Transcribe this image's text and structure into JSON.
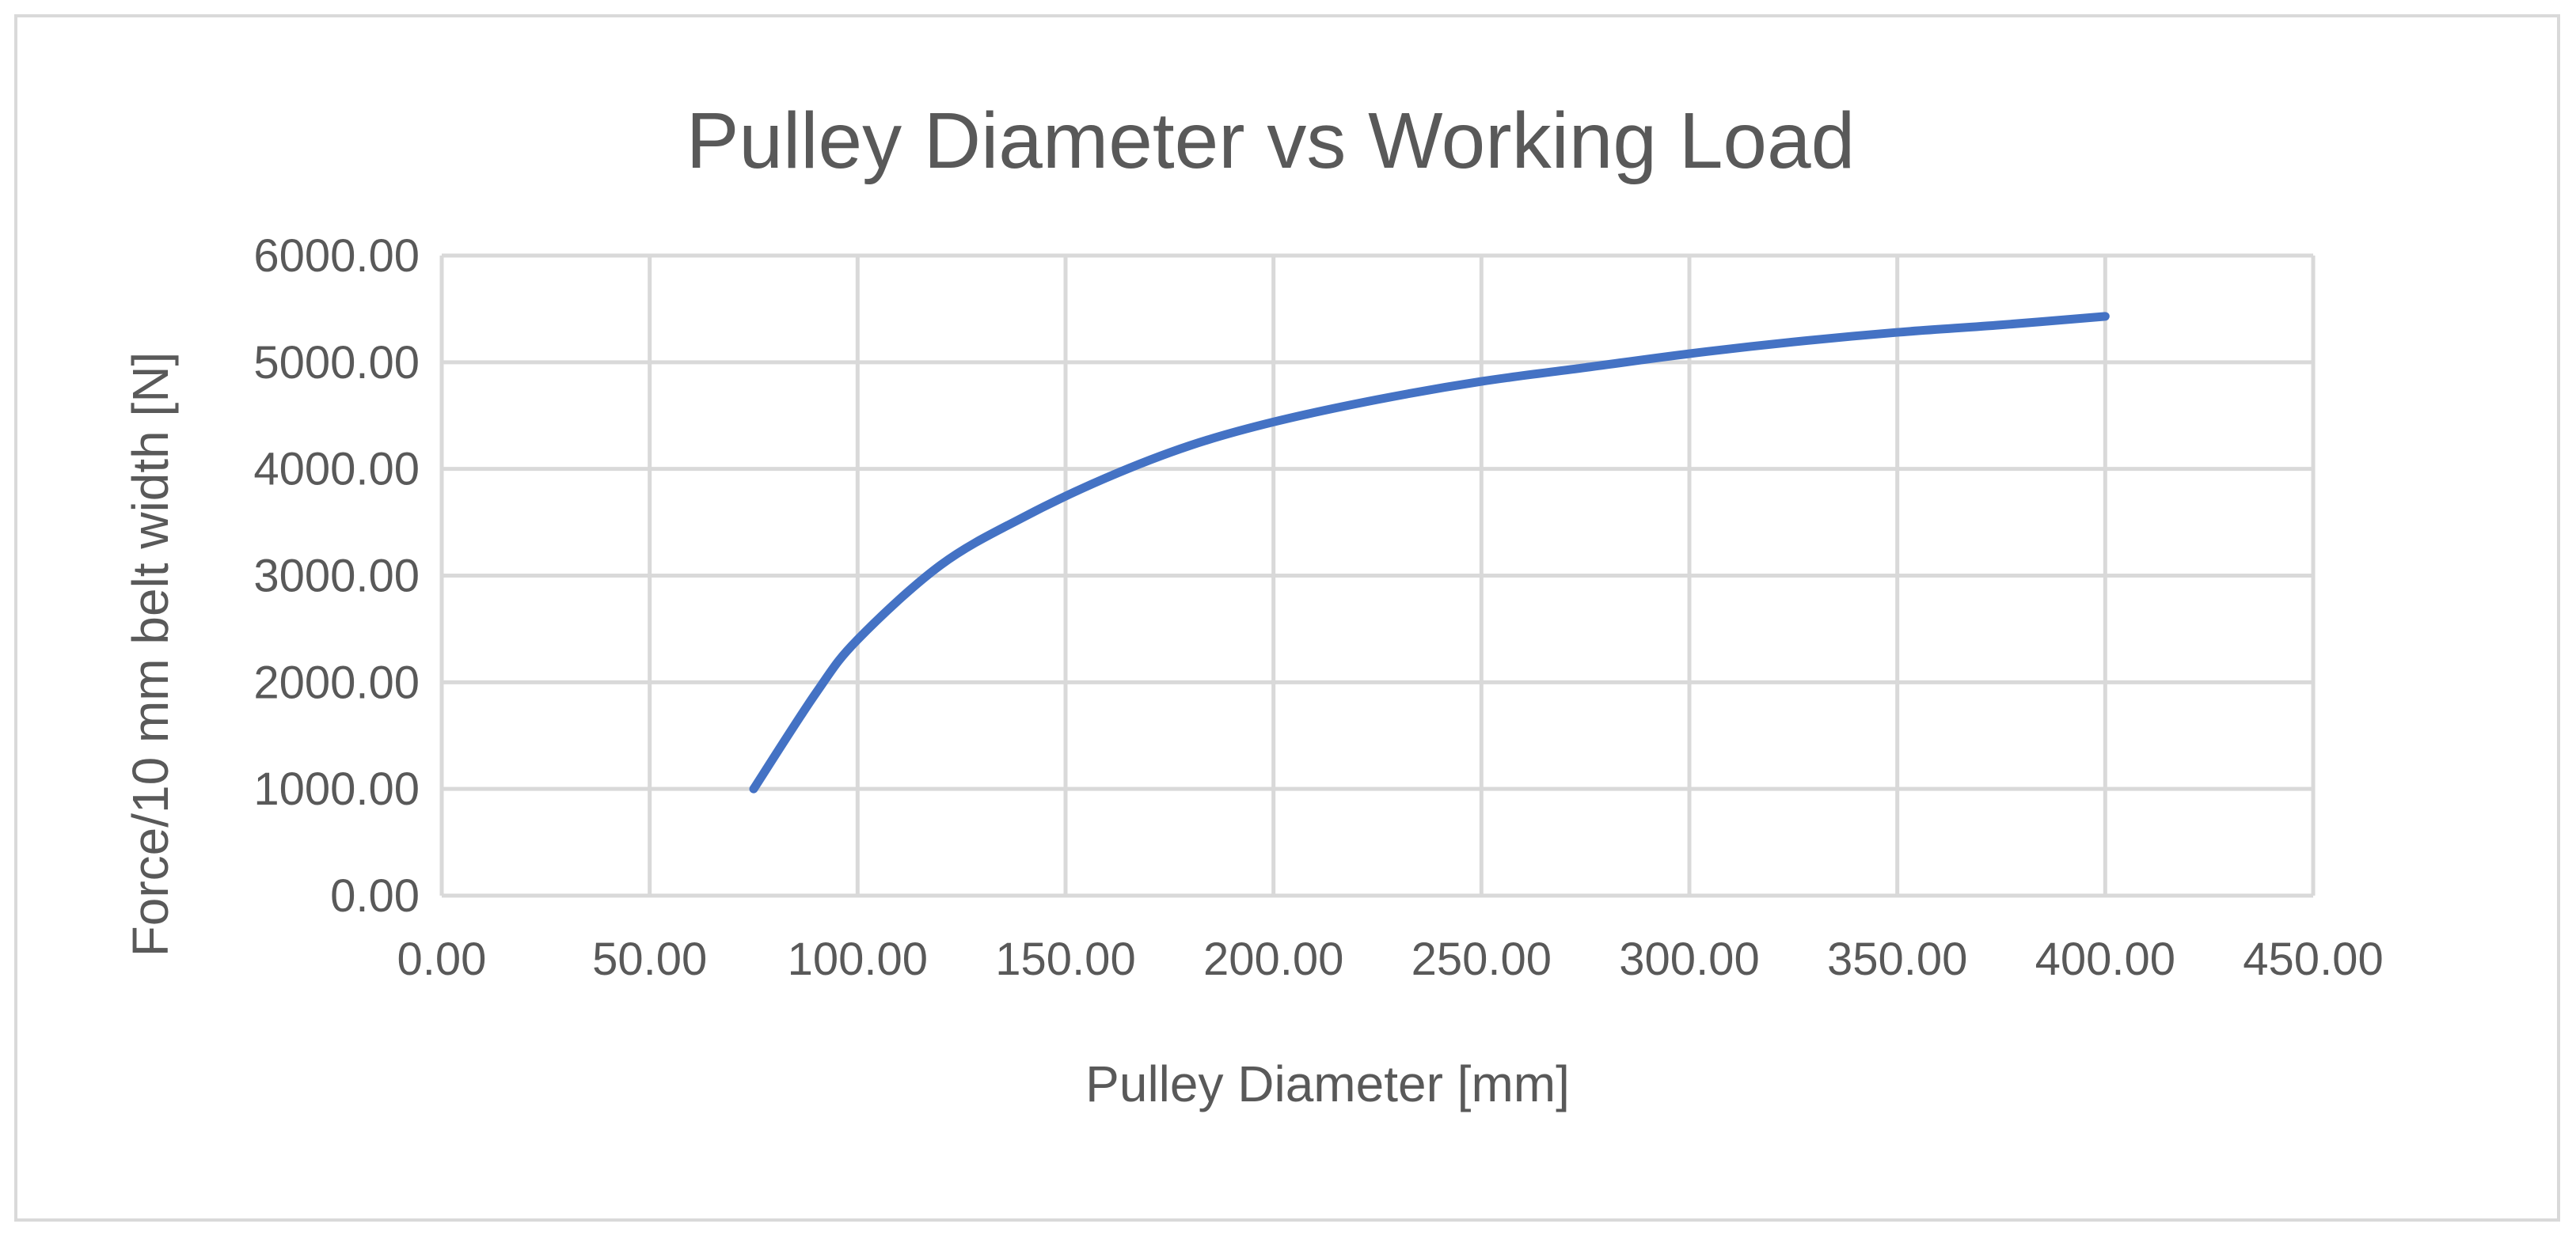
{
  "chart_data": {
    "type": "line",
    "title": "Pulley Diameter vs Working Load",
    "xlabel": "Pulley Diameter [mm]",
    "ylabel": "Force/10 mm belt width [N]",
    "xlim": [
      0,
      450
    ],
    "ylim": [
      0,
      6000
    ],
    "x_ticks": [
      "0.00",
      "50.00",
      "100.00",
      "150.00",
      "200.00",
      "250.00",
      "300.00",
      "350.00",
      "400.00",
      "450.00"
    ],
    "y_ticks": [
      "0.00",
      "1000.00",
      "2000.00",
      "3000.00",
      "4000.00",
      "5000.00",
      "6000.00"
    ],
    "grid": true,
    "legend": "none",
    "series": [
      {
        "color": "#4472c4",
        "x": [
          75,
          90,
          100,
          120,
          140,
          160,
          180,
          200,
          225,
          250,
          275,
          300,
          325,
          350,
          375,
          400
        ],
        "y": [
          1000,
          1900,
          2400,
          3100,
          3550,
          3920,
          4220,
          4440,
          4650,
          4820,
          4950,
          5080,
          5190,
          5280,
          5350,
          5430
        ]
      }
    ]
  }
}
